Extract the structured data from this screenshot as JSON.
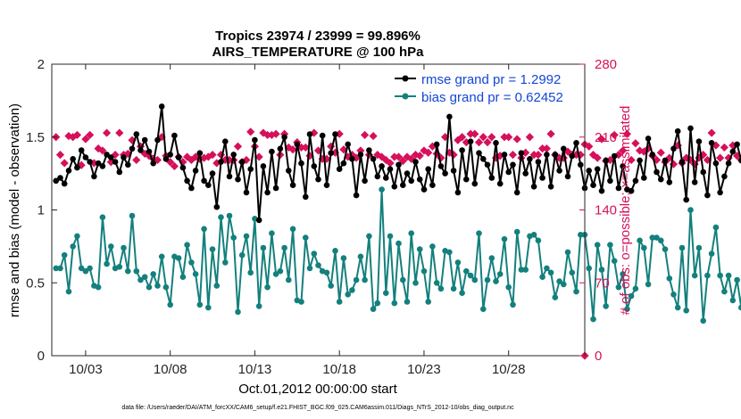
{
  "chart_data": {
    "type": "line",
    "title": "Tropics 23974 / 23999 = 99.896%",
    "subtitle": "AIRS_TEMPERATURE @ 100 hPa",
    "xlabel": "Oct.01,2012 00:00:00 start",
    "ylabel_left": "rmse and bias (model - observation)",
    "ylabel_right": "# of obs: o=possible; ×=assimilated",
    "footer": "data file: /Users/raeder/DAI/ATM_forcXX/CAM6_setup/f.e21.FHIST_BGC.f09_025.CAM6assim.011/Diags_NTrS_2012-10/obs_diag_output.nc",
    "x_ticks": [
      "10/03",
      "10/08",
      "10/13",
      "10/18",
      "10/23",
      "10/28"
    ],
    "x_tick_days": [
      3,
      8,
      13,
      18,
      23,
      28
    ],
    "xlim": [
      1,
      32.5
    ],
    "ylim_left": [
      0,
      2
    ],
    "y_ticks_left": [
      "0",
      "0.5",
      "1",
      "1.5",
      "2"
    ],
    "ylim_right": [
      0,
      280
    ],
    "y_ticks_right": [
      "0",
      "70",
      "140",
      "210",
      "280"
    ],
    "grid": false,
    "legend_position": "top-right",
    "x_start": 1.25,
    "x_step": 0.25,
    "series": [
      {
        "name": "rmse",
        "legend": "rmse grand pr = 1.2992",
        "color": "#000000",
        "axis": "left",
        "values": [
          1.2,
          1.22,
          1.18,
          1.27,
          1.35,
          1.29,
          1.41,
          1.36,
          1.33,
          1.23,
          1.32,
          1.3,
          1.38,
          1.36,
          1.33,
          1.26,
          1.36,
          1.31,
          1.42,
          1.52,
          1.41,
          1.48,
          1.4,
          1.32,
          1.48,
          1.71,
          1.35,
          1.38,
          1.51,
          1.36,
          1.29,
          1.2,
          1.15,
          1.27,
          1.39,
          1.2,
          1.17,
          1.25,
          1.02,
          1.33,
          1.47,
          1.23,
          1.38,
          1.21,
          1.33,
          1.12,
          1.28,
          1.48,
          0.93,
          1.3,
          1.12,
          1.4,
          1.15,
          1.42,
          1.5,
          1.27,
          1.17,
          1.45,
          1.32,
          1.09,
          1.52,
          1.3,
          1.21,
          1.51,
          1.17,
          1.39,
          1.52,
          1.28,
          1.32,
          1.45,
          1.35,
          1.1,
          1.38,
          1.2,
          1.41,
          1.35,
          1.23,
          1.3,
          1.22,
          1.28,
          1.16,
          1.31,
          1.17,
          1.25,
          1.2,
          1.33,
          1.21,
          1.14,
          1.28,
          1.17,
          1.45,
          1.3,
          1.25,
          1.64,
          1.27,
          1.12,
          1.41,
          1.21,
          1.47,
          1.18,
          1.39,
          1.35,
          1.31,
          1.22,
          1.46,
          1.18,
          1.38,
          1.26,
          1.31,
          1.12,
          1.39,
          1.25,
          1.35,
          1.16,
          1.33,
          1.22,
          1.38,
          1.16,
          1.38,
          1.27,
          1.42,
          1.23,
          1.37,
          1.46,
          1.31,
          1.15,
          1.27,
          1.17,
          1.28,
          1.13,
          1.34,
          1.2,
          1.37,
          1.15,
          1.3,
          1.14,
          1.13,
          1.2,
          1.34,
          1.22,
          1.49,
          1.38,
          1.26,
          1.21,
          1.34,
          1.19,
          1.42,
          1.54,
          1.33,
          1.07,
          1.56,
          1.19,
          1.47,
          1.26,
          1.1,
          1.46,
          1.32,
          1.12,
          1.23,
          1.32,
          1.4,
          1.45,
          1.34,
          1.25,
          1.22,
          1.63,
          1.28,
          1.36,
          1.39,
          1.53,
          1.24,
          1.19,
          1.27,
          1.27
        ]
      },
      {
        "name": "bias",
        "legend": "bias grand pr = 0.62452",
        "color": "#14807d",
        "axis": "left",
        "values": [
          0.6,
          0.6,
          0.69,
          0.44,
          0.75,
          0.82,
          0.6,
          0.58,
          0.6,
          0.48,
          0.47,
          0.95,
          0.63,
          0.75,
          0.6,
          0.61,
          0.74,
          0.58,
          0.96,
          0.58,
          0.52,
          0.54,
          0.47,
          0.56,
          0.48,
          0.68,
          0.47,
          0.35,
          0.68,
          0.67,
          0.54,
          0.76,
          0.64,
          0.56,
          0.35,
          0.87,
          0.33,
          0.73,
          0.48,
          0.95,
          0.64,
          0.96,
          0.81,
          0.3,
          0.69,
          0.82,
          0.57,
          0.94,
          0.34,
          0.74,
          0.47,
          0.84,
          0.56,
          0.58,
          0.74,
          0.52,
          0.87,
          0.38,
          0.37,
          0.81,
          0.6,
          0.7,
          0.62,
          0.58,
          0.57,
          0.48,
          0.72,
          0.37,
          0.67,
          0.42,
          0.45,
          0.52,
          0.68,
          0.52,
          0.82,
          0.32,
          0.36,
          1.14,
          0.43,
          0.82,
          0.36,
          0.77,
          0.52,
          0.37,
          0.84,
          0.5,
          0.73,
          0.58,
          0.37,
          0.75,
          0.5,
          0.46,
          0.72,
          0.71,
          0.46,
          0.64,
          0.43,
          0.58,
          0.55,
          0.52,
          0.84,
          0.32,
          0.52,
          0.67,
          0.51,
          0.56,
          0.8,
          0.47,
          0.35,
          0.85,
          0.59,
          0.59,
          0.82,
          0.83,
          0.79,
          0.54,
          0.6,
          0.57,
          0.4,
          0.51,
          0.49,
          0.71,
          0.57,
          0.44,
          0.83,
          0.83,
          0.6,
          0.25,
          0.76,
          0.59,
          0.34,
          0.76,
          0.65,
          0.47,
          0.56,
          0.32,
          0.41,
          0.46,
          0.79,
          0.74,
          0.49,
          0.81,
          0.81,
          0.79,
          0.73,
          0.53,
          0.42,
          0.33,
          0.74,
          0.31,
          1.0,
          0.55,
          0.74,
          0.24,
          0.55,
          0.7,
          0.88,
          0.55,
          0.44,
          0.55,
          0.38,
          0.52,
          0.33,
          0.91,
          0.85,
          0.54,
          0.28,
          0.82,
          0.93,
          0.56,
          0.47,
          0.82,
          0.32
        ]
      },
      {
        "name": "obs_possible",
        "legend": "o=possible",
        "color": "#d6105b",
        "axis": "right",
        "values": [
          210,
          193,
          185,
          211,
          210,
          212,
          183,
          208,
          212,
          185,
          199,
          197,
          214,
          186,
          193,
          214,
          193,
          194,
          207,
          188,
          201,
          194,
          192,
          189,
          188,
          210,
          192,
          186,
          182,
          191,
          186,
          191,
          188,
          191,
          189,
          190,
          191,
          193,
          185,
          193,
          188,
          188,
          188,
          201,
          186,
          188,
          215,
          201,
          191,
          214,
          212,
          212,
          213,
          193,
          213,
          200,
          198,
          205,
          200,
          200,
          192,
          214,
          197,
          189,
          189,
          201,
          195,
          213,
          198,
          191,
          193,
          190,
          197,
          212,
          193,
          211,
          193,
          191,
          188,
          185,
          191,
          191,
          187,
          191,
          189,
          193,
          192,
          197,
          195,
          201,
          194,
          190,
          210,
          195,
          193,
          207,
          210,
          205,
          213,
          213,
          205,
          210,
          205,
          210,
          190,
          192,
          210,
          210,
          193,
          208,
          190,
          195,
          210,
          193,
          193,
          199,
          199,
          213,
          193,
          190,
          190,
          196,
          193,
          193,
          193,
          203,
          201,
          193,
          190,
          208,
          187,
          188,
          212,
          193,
          197,
          213,
          188,
          204,
          197,
          196,
          199,
          192,
          188,
          195,
          186,
          190,
          184,
          202,
          185,
          190,
          188,
          184,
          190,
          193,
          188,
          214,
          202,
          190,
          200,
          190,
          202,
          192,
          188,
          190,
          189,
          201,
          190,
          192,
          190,
          188,
          188,
          190,
          190,
          188,
          190,
          210
        ]
      }
    ]
  }
}
